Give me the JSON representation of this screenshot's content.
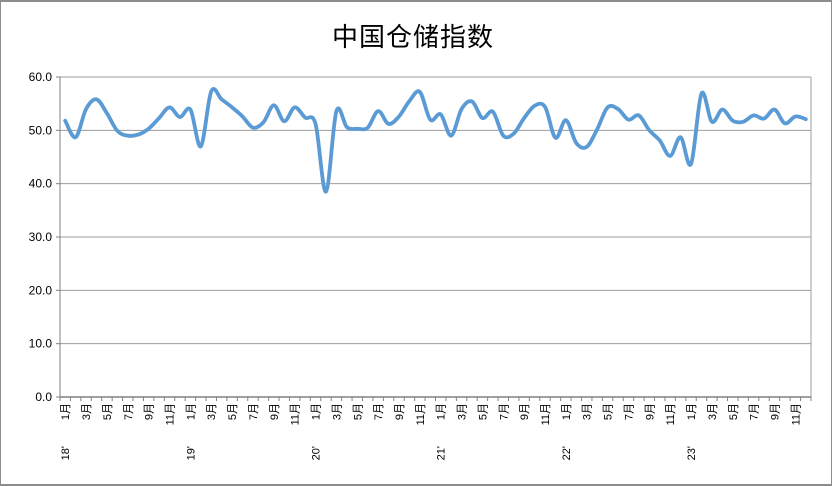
{
  "window": {
    "background": "#ffffff",
    "border_color": "#8c8c8c"
  },
  "chart": {
    "title": "中国仓储指数",
    "line_color": "#5B9BD5",
    "gridline_color": "#9c9c9c",
    "axis_color": "#808080",
    "label_color": "#000000",
    "y_tick_labels": [
      "0.0",
      "10.0",
      "20.0",
      "30.0",
      "40.0",
      "50.0",
      "60.0"
    ],
    "month_tick_labels": [
      "1月",
      "3月",
      "5月",
      "7月",
      "9月",
      "11月"
    ],
    "year_labels": [
      "18'",
      "19'",
      "20'",
      "21'",
      "22'",
      "23'"
    ]
  },
  "chart_data": {
    "type": "line",
    "title": "中国仓储指数",
    "xlabel": "",
    "ylabel": "",
    "ylim": [
      0,
      60
    ],
    "y_tick_step": 10,
    "grid": "horizontal",
    "legend": "none",
    "smooth": true,
    "x": [
      "2018-01",
      "2018-02",
      "2018-03",
      "2018-04",
      "2018-05",
      "2018-06",
      "2018-07",
      "2018-08",
      "2018-09",
      "2018-10",
      "2018-11",
      "2018-12",
      "2019-01",
      "2019-02",
      "2019-03",
      "2019-04",
      "2019-05",
      "2019-06",
      "2019-07",
      "2019-08",
      "2019-09",
      "2019-10",
      "2019-11",
      "2019-12",
      "2020-01",
      "2020-02",
      "2020-03",
      "2020-04",
      "2020-05",
      "2020-06",
      "2020-07",
      "2020-08",
      "2020-09",
      "2020-10",
      "2020-11",
      "2020-12",
      "2021-01",
      "2021-02",
      "2021-03",
      "2021-04",
      "2021-05",
      "2021-06",
      "2021-07",
      "2021-08",
      "2021-09",
      "2021-10",
      "2021-11",
      "2021-12",
      "2022-01",
      "2022-02",
      "2022-03",
      "2022-04",
      "2022-05",
      "2022-06",
      "2022-07",
      "2022-08",
      "2022-09",
      "2022-10",
      "2022-11",
      "2022-12",
      "2023-01",
      "2023-02",
      "2023-03",
      "2023-04",
      "2023-05",
      "2023-06",
      "2023-07",
      "2023-08",
      "2023-09",
      "2023-10",
      "2023-11",
      "2023-12"
    ],
    "values": [
      51.8,
      48.7,
      54.0,
      55.8,
      53.2,
      49.9,
      49.0,
      49.2,
      50.3,
      52.3,
      54.3,
      52.5,
      53.9,
      47.0,
      57.3,
      55.8,
      54.3,
      52.6,
      50.5,
      51.5,
      54.7,
      51.7,
      54.3,
      52.4,
      51.2,
      38.5,
      53.6,
      50.6,
      50.3,
      50.5,
      53.6,
      51.2,
      52.6,
      55.5,
      57.2,
      52.0,
      53.0,
      49.0,
      54.0,
      55.4,
      52.3,
      53.5,
      49.0,
      49.4,
      52.3,
      54.6,
      54.4,
      48.6,
      51.9,
      47.6,
      46.9,
      50.2,
      54.3,
      54.0,
      52.0,
      52.8,
      50.0,
      48.1,
      45.2,
      48.7,
      43.7,
      56.9,
      51.6,
      53.9,
      51.8,
      51.6,
      52.8,
      52.2,
      53.9,
      51.3,
      52.6,
      52.1
    ]
  }
}
